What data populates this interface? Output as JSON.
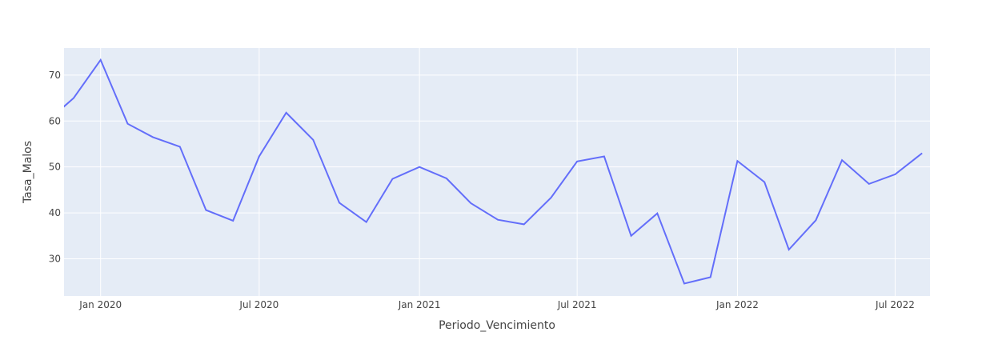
{
  "chart_data": {
    "type": "line",
    "title": "",
    "xlabel": "Periodo_Vencimiento",
    "ylabel": "Tasa_Malos",
    "x_tick_labels": [
      "Jan 2020",
      "Jul 2020",
      "Jan 2021",
      "Jul 2021",
      "Jan 2022",
      "Jul 2022"
    ],
    "y_tick_labels": [
      "30",
      "40",
      "50",
      "60",
      "70"
    ],
    "xlim": [
      "2019-11-20",
      "2022-08-10"
    ],
    "ylim": [
      21.9,
      75.9
    ],
    "grid": true,
    "legend": "none",
    "colors": {
      "line": "#636efa",
      "plot_bg": "#e5ecf6",
      "grid": "#ffffff",
      "text": "#444444"
    },
    "x": [
      "2019-11-01",
      "2019-12-01",
      "2020-01-01",
      "2020-02-01",
      "2020-03-01",
      "2020-04-01",
      "2020-05-01",
      "2020-06-01",
      "2020-07-01",
      "2020-08-01",
      "2020-09-01",
      "2020-10-01",
      "2020-11-01",
      "2020-12-01",
      "2021-01-01",
      "2021-02-01",
      "2021-03-01",
      "2021-04-01",
      "2021-05-01",
      "2021-06-01",
      "2021-07-01",
      "2021-08-01",
      "2021-09-01",
      "2021-10-01",
      "2021-11-01",
      "2021-12-01",
      "2022-01-01",
      "2022-02-01",
      "2022-03-01",
      "2022-04-01",
      "2022-05-01",
      "2022-06-01",
      "2022-07-01",
      "2022-08-01"
    ],
    "series": [
      {
        "values": [
          60.0,
          65.0,
          73.3,
          59.4,
          56.5,
          54.4,
          40.6,
          38.3,
          52.3,
          61.8,
          55.9,
          42.2,
          38.0,
          47.4,
          50.0,
          47.5,
          42.1,
          38.5,
          37.5,
          43.3,
          51.2,
          52.3,
          35.0,
          39.9,
          24.6,
          26.0,
          51.3,
          46.7,
          32.0,
          38.4,
          51.5,
          46.3,
          48.4,
          53.0
        ]
      }
    ]
  }
}
